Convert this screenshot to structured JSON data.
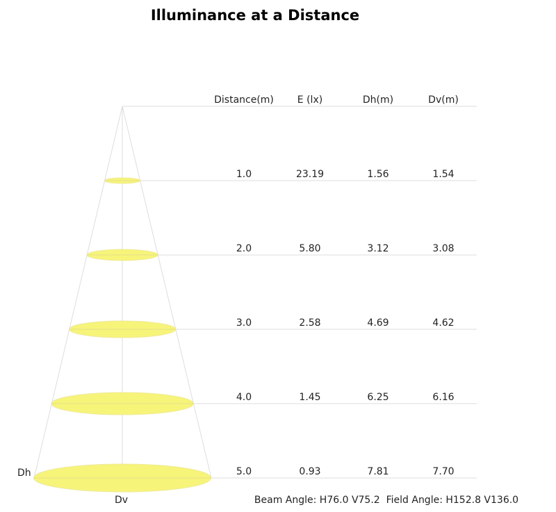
{
  "title": "Illuminance at a Distance",
  "headers": [
    "Distance(m)",
    "E (lx)",
    "Dh(m)",
    "Dv(m)"
  ],
  "rows": [
    {
      "distance": "1.0",
      "e": "23.19",
      "dh": "1.56",
      "dv": "1.54"
    },
    {
      "distance": "2.0",
      "e": "5.80",
      "dh": "3.12",
      "dv": "3.08"
    },
    {
      "distance": "3.0",
      "e": "2.58",
      "dh": "4.69",
      "dv": "4.62"
    },
    {
      "distance": "4.0",
      "e": "1.45",
      "dh": "6.25",
      "dv": "6.16"
    },
    {
      "distance": "5.0",
      "e": "0.93",
      "dh": "7.81",
      "dv": "7.70"
    }
  ],
  "labels": {
    "dh": "Dh",
    "dv": "Dv"
  },
  "footer": "Beam Angle: H76.0 V75.2  Field Angle: H152.8 V136.0",
  "colors": {
    "spot": "#f7f47a",
    "lines": "#dddddd"
  }
}
